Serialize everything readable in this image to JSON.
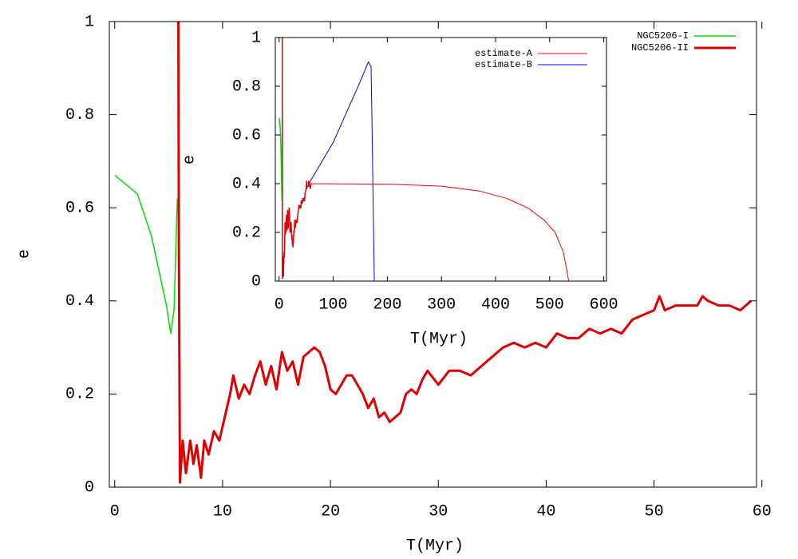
{
  "chart_data": [
    {
      "type": "line",
      "xlabel": "T(Myr)",
      "ylabel": "e",
      "xlim": [
        -0.5,
        59.5
      ],
      "ylim": [
        0,
        1
      ],
      "xticks": [
        0,
        10,
        20,
        30,
        40,
        50,
        60
      ],
      "yticks": [
        0,
        0.2,
        0.4,
        0.6,
        0.8,
        1
      ],
      "legend": "top-right",
      "series": [
        {
          "name": "NGC5206-I",
          "color": "#00e000",
          "x": [
            0,
            2.1,
            3.4,
            4.8,
            5.2,
            5.5,
            5.8
          ],
          "values": [
            0.67,
            0.63,
            0.54,
            0.39,
            0.33,
            0.38,
            0.62
          ]
        },
        {
          "name": "NGC5206-II",
          "color": "#e00000",
          "x": [
            5.9,
            5.95,
            6.05,
            6.3,
            6.6,
            7.0,
            7.3,
            7.6,
            8.0,
            8.3,
            8.7,
            9.2,
            9.7,
            10.2,
            10.7,
            11.0,
            11.5,
            12.0,
            12.5,
            13.0,
            13.5,
            14.0,
            14.5,
            15.0,
            15.5,
            16.0,
            16.5,
            17.0,
            17.5,
            18.0,
            18.5,
            19.0,
            19.5,
            20.0,
            20.5,
            21.0,
            21.5,
            22.0,
            22.5,
            23.0,
            23.5,
            24.0,
            24.5,
            25.0,
            25.5,
            26.0,
            26.5,
            27.0,
            27.5,
            28.0,
            28.5,
            29.0,
            30.0,
            31.0,
            32.0,
            33.0,
            34.0,
            35.0,
            36.0,
            37.0,
            38.0,
            39.0,
            40.0,
            41.0,
            42.0,
            43.0,
            44.0,
            45.0,
            46.0,
            47.0,
            48.0,
            49.0,
            50.0,
            50.5,
            51.0,
            52.0,
            53.0,
            54.0,
            54.5,
            55.0,
            56.0,
            57.0,
            58.0,
            59.0
          ],
          "values": [
            1.0,
            0.5,
            0.01,
            0.1,
            0.03,
            0.1,
            0.05,
            0.09,
            0.02,
            0.1,
            0.07,
            0.12,
            0.1,
            0.15,
            0.2,
            0.24,
            0.19,
            0.22,
            0.2,
            0.24,
            0.27,
            0.22,
            0.26,
            0.21,
            0.29,
            0.25,
            0.27,
            0.22,
            0.28,
            0.29,
            0.3,
            0.29,
            0.26,
            0.21,
            0.2,
            0.22,
            0.24,
            0.24,
            0.22,
            0.2,
            0.17,
            0.19,
            0.15,
            0.16,
            0.14,
            0.15,
            0.16,
            0.2,
            0.21,
            0.2,
            0.23,
            0.25,
            0.22,
            0.25,
            0.25,
            0.24,
            0.26,
            0.28,
            0.3,
            0.31,
            0.3,
            0.31,
            0.3,
            0.33,
            0.32,
            0.32,
            0.34,
            0.33,
            0.34,
            0.33,
            0.36,
            0.37,
            0.38,
            0.41,
            0.38,
            0.39,
            0.39,
            0.39,
            0.41,
            0.4,
            0.39,
            0.39,
            0.38,
            0.4
          ]
        }
      ]
    },
    {
      "type": "line",
      "xlabel": "T(Myr)",
      "ylabel": "e",
      "xlim": [
        -7,
        605
      ],
      "ylim": [
        0,
        1
      ],
      "xticks": [
        0,
        100,
        200,
        300,
        400,
        500,
        600
      ],
      "yticks": [
        0,
        0.2,
        0.4,
        0.6,
        0.8,
        1
      ],
      "legend": "top-right",
      "series": [
        {
          "name": "estimate-A",
          "color": "#ff0000",
          "x": [
            55,
            200,
            300,
            370,
            420,
            460,
            490,
            510,
            525,
            533,
            535
          ],
          "values": [
            0.4,
            0.398,
            0.39,
            0.37,
            0.34,
            0.3,
            0.25,
            0.2,
            0.12,
            0.03,
            0
          ]
        },
        {
          "name": "estimate-B",
          "color": "#0000ff",
          "x": [
            55,
            100,
            150,
            165,
            170,
            172,
            174,
            176
          ],
          "values": [
            0.4,
            0.57,
            0.82,
            0.9,
            0.88,
            0.6,
            0.3,
            0
          ]
        }
      ]
    }
  ]
}
